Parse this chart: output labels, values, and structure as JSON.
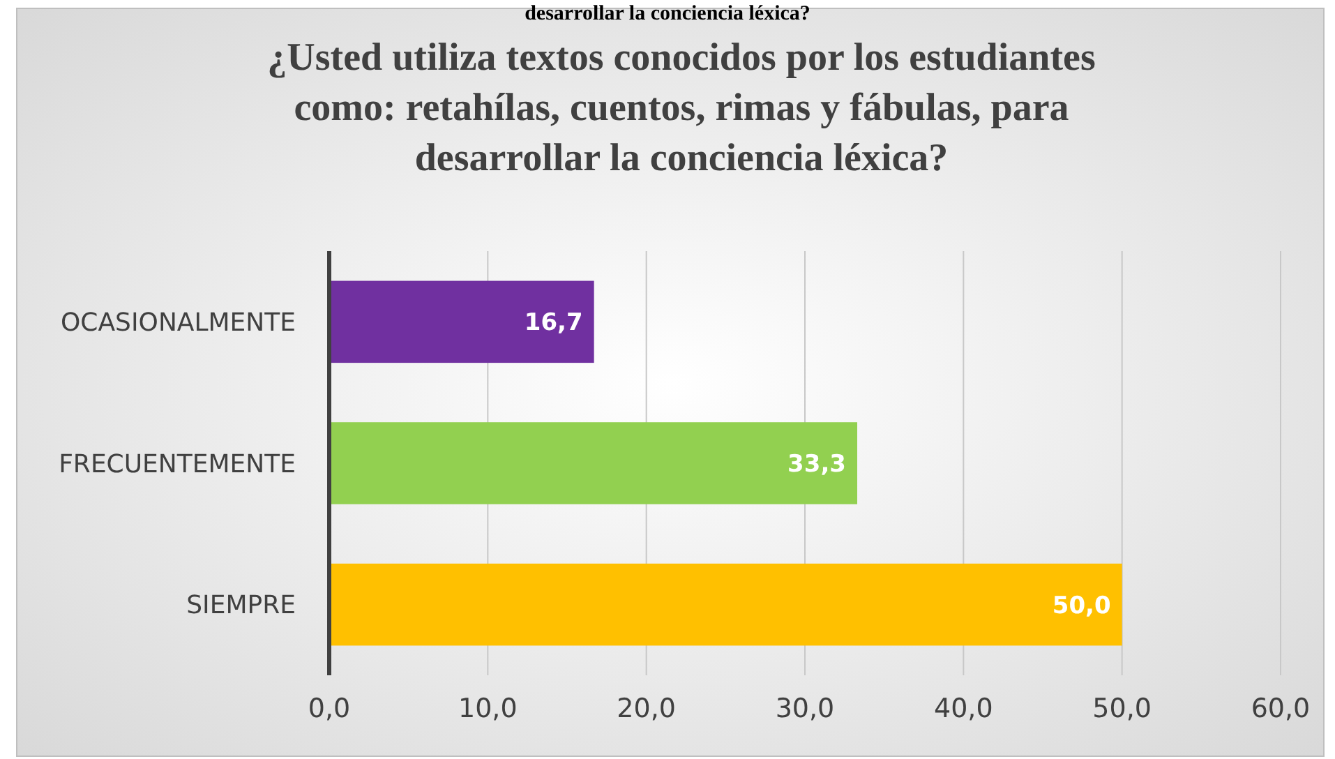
{
  "chart_data": {
    "type": "bar",
    "orientation": "horizontal",
    "title": "¿Usted utiliza textos conocidos por los estudiantes como: retahílas, cuentos, rimas y fábulas, para desarrollar la conciencia léxica?",
    "annotations": [
      "desarrollar la conciencia léxica?"
    ],
    "categories": [
      "OCASIONALMENTE",
      "FRECUENTEMENTE",
      "SIEMPRE"
    ],
    "values": [
      16.7,
      33.3,
      50.0
    ],
    "colors": [
      "#7030a0",
      "#92d050",
      "#ffc000"
    ],
    "value_labels": [
      "16,7",
      "33,3",
      "50,0"
    ],
    "xlim": [
      0,
      60
    ],
    "xticks": [
      {
        "value": 0,
        "label": "0,0"
      },
      {
        "value": 10,
        "label": "10,0"
      },
      {
        "value": 20,
        "label": "20,0"
      },
      {
        "value": 30,
        "label": "30,0"
      },
      {
        "value": 40,
        "label": "40,0"
      },
      {
        "value": 50,
        "label": "50,0"
      },
      {
        "value": 60,
        "label": "60,0"
      }
    ],
    "grid": "x"
  }
}
